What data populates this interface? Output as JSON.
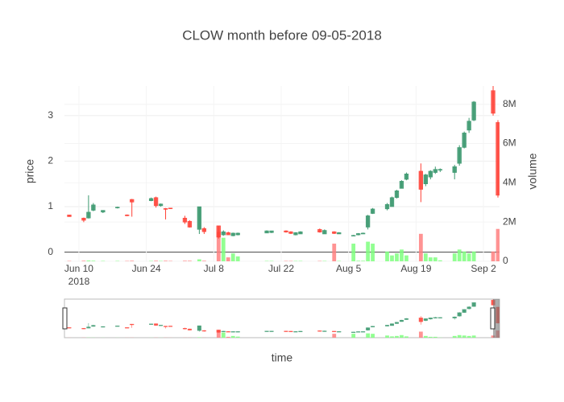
{
  "chart_data": {
    "type": "candlestick",
    "title": "CLOW month before 09-05-2018",
    "x_title": "time",
    "y_title": "price",
    "y2_title": "volume",
    "year_label": "2018",
    "increasing_color": "#3d9970",
    "decreasing_color": "#ff4136",
    "volume_increasing_color": "#7fff7f",
    "volume_decreasing_color": "#ff8080",
    "grid": true,
    "x": [
      "2018-06-08",
      "2018-06-11",
      "2018-06-12",
      "2018-06-13",
      "2018-06-15",
      "2018-06-18",
      "2018-06-20",
      "2018-06-21",
      "2018-06-25",
      "2018-06-26",
      "2018-06-27",
      "2018-06-28",
      "2018-06-29",
      "2018-07-02",
      "2018-07-03",
      "2018-07-05",
      "2018-07-06",
      "2018-07-09",
      "2018-07-10",
      "2018-07-11",
      "2018-07-12",
      "2018-07-13",
      "2018-07-19",
      "2018-07-20",
      "2018-07-23",
      "2018-07-24",
      "2018-07-25",
      "2018-07-26",
      "2018-07-30",
      "2018-07-31",
      "2018-08-02",
      "2018-08-03",
      "2018-08-06",
      "2018-08-07",
      "2018-08-08",
      "2018-08-09",
      "2018-08-10",
      "2018-08-13",
      "2018-08-14",
      "2018-08-15",
      "2018-08-16",
      "2018-08-17",
      "2018-08-20",
      "2018-08-21",
      "2018-08-22",
      "2018-08-23",
      "2018-08-24",
      "2018-08-27",
      "2018-08-28",
      "2018-08-29",
      "2018-08-30",
      "2018-08-31",
      "2018-09-04",
      "2018-09-05"
    ],
    "open": [
      0.82,
      0.75,
      0.75,
      0.92,
      0.88,
      0.97,
      0.82,
      1.16,
      1.13,
      1.2,
      1.02,
      0.96,
      0.97,
      0.75,
      0.68,
      0.5,
      0.52,
      0.58,
      0.38,
      0.43,
      0.36,
      0.38,
      0.42,
      0.43,
      0.47,
      0.45,
      0.38,
      0.4,
      0.5,
      0.4,
      0.45,
      0.4,
      0.37,
      0.38,
      0.4,
      0.55,
      0.85,
      0.95,
      1.0,
      1.2,
      1.4,
      1.6,
      1.78,
      1.5,
      1.65,
      1.75,
      1.8,
      1.75,
      1.95,
      2.3,
      2.68,
      2.9,
      3.55,
      2.85
    ],
    "high": [
      0.82,
      0.76,
      1.25,
      1.08,
      0.92,
      1.0,
      0.83,
      1.17,
      1.2,
      1.22,
      1.07,
      0.97,
      0.97,
      0.8,
      0.7,
      1.0,
      0.55,
      0.58,
      0.48,
      0.45,
      0.43,
      0.43,
      0.48,
      0.47,
      0.48,
      0.46,
      0.44,
      0.46,
      0.52,
      0.5,
      0.46,
      0.44,
      0.38,
      0.42,
      0.43,
      0.82,
      0.97,
      1.08,
      1.22,
      1.37,
      1.58,
      1.75,
      1.95,
      1.72,
      1.8,
      1.88,
      1.84,
      1.92,
      2.35,
      2.65,
      2.95,
      3.32,
      3.65,
      2.9
    ],
    "low": [
      0.78,
      0.66,
      0.74,
      0.9,
      0.86,
      0.96,
      0.79,
      0.78,
      1.12,
      0.98,
      1.0,
      0.72,
      0.95,
      0.62,
      0.54,
      0.4,
      0.4,
      0.3,
      0.36,
      0.38,
      0.35,
      0.37,
      0.42,
      0.42,
      0.43,
      0.4,
      0.37,
      0.4,
      0.43,
      0.4,
      0.4,
      0.4,
      0.36,
      0.37,
      0.4,
      0.5,
      0.84,
      0.92,
      1.0,
      1.18,
      1.4,
      1.58,
      1.1,
      1.45,
      1.6,
      1.72,
      1.76,
      1.6,
      1.9,
      2.28,
      2.62,
      2.88,
      3.0,
      1.2
    ],
    "close": [
      0.78,
      0.7,
      0.88,
      1.04,
      0.92,
      0.99,
      0.8,
      1.1,
      1.18,
      1.02,
      1.06,
      0.94,
      0.96,
      0.66,
      0.55,
      1.0,
      0.45,
      0.33,
      0.45,
      0.38,
      0.42,
      0.42,
      0.47,
      0.47,
      0.44,
      0.41,
      0.43,
      0.45,
      0.44,
      0.48,
      0.41,
      0.43,
      0.37,
      0.41,
      0.42,
      0.8,
      0.95,
      1.05,
      1.2,
      1.35,
      1.56,
      1.72,
      1.38,
      1.7,
      1.78,
      1.82,
      1.82,
      1.88,
      2.3,
      2.62,
      2.88,
      3.3,
      3.05,
      1.25
    ],
    "volume": [
      20000,
      30000,
      40000,
      30000,
      20000,
      20000,
      20000,
      30000,
      20000,
      30000,
      20000,
      30000,
      20000,
      30000,
      30000,
      100000,
      30000,
      1500000,
      1200000,
      200000,
      400000,
      250000,
      20000,
      20000,
      20000,
      20000,
      20000,
      20000,
      20000,
      20000,
      900000,
      20000,
      900000,
      30000,
      30000,
      1000000,
      900000,
      500000,
      300000,
      400000,
      600000,
      300000,
      1400000,
      400000,
      200000,
      200000,
      50000,
      400000,
      600000,
      500000,
      400000,
      500000,
      500000,
      1650000
    ],
    "xlim": [
      "2018-06-07",
      "2018-09-05 08:00"
    ],
    "xticks": [
      {
        "value": "2018-06-10",
        "label": "Jun 10"
      },
      {
        "value": "2018-06-24",
        "label": "Jun 24"
      },
      {
        "value": "2018-07-08",
        "label": "Jul 8"
      },
      {
        "value": "2018-07-22",
        "label": "Jul 22"
      },
      {
        "value": "2018-08-05",
        "label": "Aug 5"
      },
      {
        "value": "2018-08-19",
        "label": "Aug 19"
      },
      {
        "value": "2018-09-02",
        "label": "Sep 2"
      }
    ],
    "ylim": [
      -0.2,
      3.65
    ],
    "yticks": [
      0,
      1,
      2,
      3
    ],
    "y2lim": [
      0,
      8930000
    ],
    "y2ticks": [
      0,
      {
        "value": 2000000,
        "label": "2M"
      },
      {
        "value": 4000000,
        "label": "4M"
      },
      {
        "value": 6000000,
        "label": "6M"
      },
      {
        "value": 8000000,
        "label": "8M"
      }
    ]
  }
}
